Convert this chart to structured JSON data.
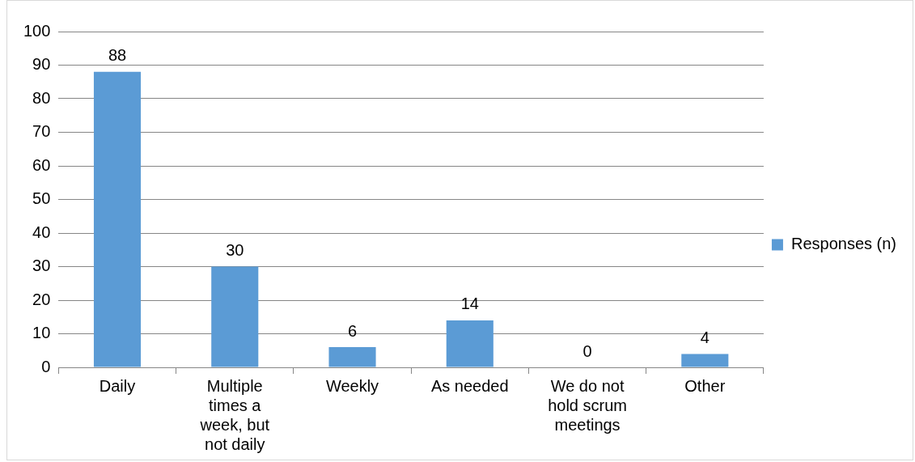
{
  "chart_data": {
    "type": "bar",
    "categories": [
      "Daily",
      "Multiple times a week, but not daily",
      "Weekly",
      "As needed",
      "We do not hold scrum meetings",
      "Other"
    ],
    "series": [
      {
        "name": "Responses (n)",
        "color": "#5b9bd5",
        "values": [
          88,
          30,
          6,
          14,
          0,
          4
        ]
      }
    ],
    "ylim": [
      0,
      100
    ],
    "yticks": [
      0,
      10,
      20,
      30,
      40,
      50,
      60,
      70,
      80,
      90,
      100
    ],
    "grid": "y",
    "legend": "right",
    "data_labels": true
  }
}
